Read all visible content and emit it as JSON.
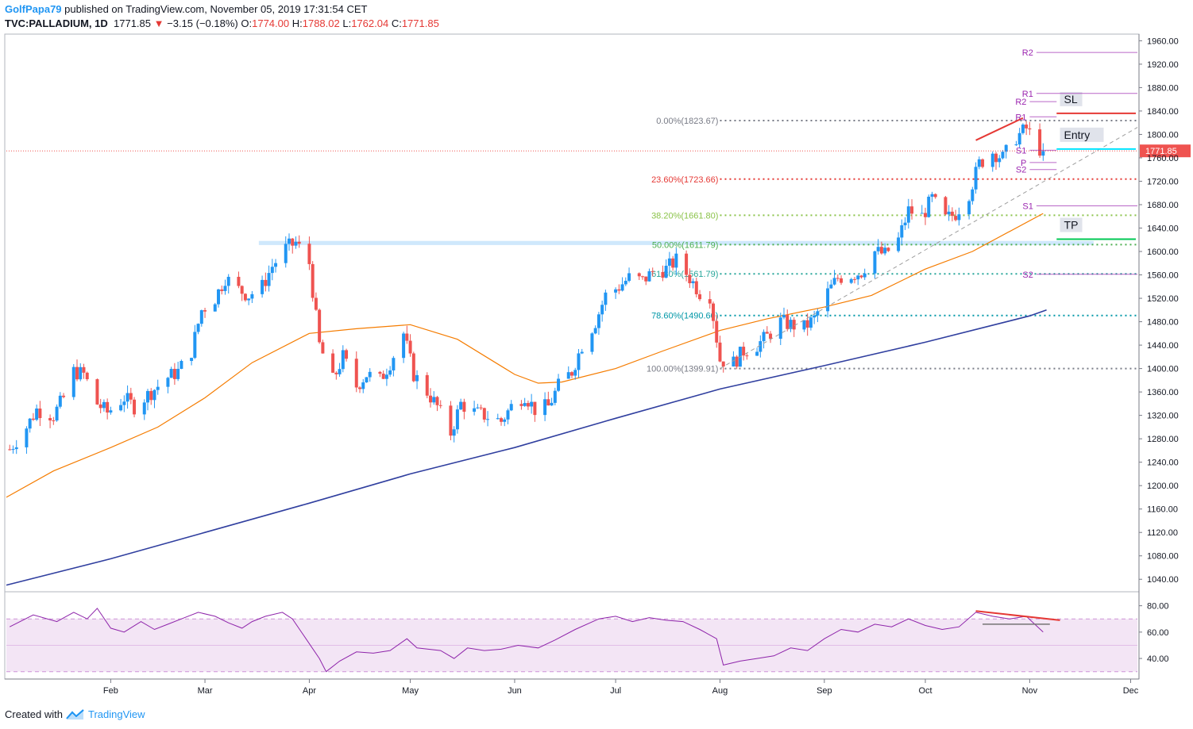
{
  "header": {
    "user": "GolfPapa79",
    "published": "published on TradingView.com, November 05, 2019 17:31:54 CET",
    "symbol": "TVC:PALLADIUM, 1D",
    "last": "1771.85",
    "change": "−3.15 (−0.18%)",
    "o_label": "O:",
    "o": "1774.00",
    "h_label": "H:",
    "h": "1788.02",
    "l_label": "L:",
    "l": "1762.04",
    "c_label": "C:",
    "c": "1771.85"
  },
  "footer": {
    "created": "Created with",
    "brand": "TradingView"
  },
  "colors": {
    "up": "#2196f3",
    "down": "#ef5350",
    "ma50": "#f57c00",
    "ma200": "#303f9f",
    "rsi": "#8e24aa",
    "rsi_band": "#f3e5f5",
    "pivot": "#9c27b0"
  },
  "chart_data": {
    "type": "candlestick",
    "symbol": "TVC:PALLADIUM",
    "interval": "1D",
    "ylim": [
      1020,
      1970
    ],
    "y_ticks": [
      "1960.00",
      "1920.00",
      "1880.00",
      "1840.00",
      "1800.00",
      "1760.00",
      "1720.00",
      "1680.00",
      "1640.00",
      "1600.00",
      "1560.00",
      "1520.00",
      "1480.00",
      "1440.00",
      "1400.00",
      "1360.00",
      "1320.00",
      "1280.00",
      "1240.00",
      "1200.00",
      "1160.00",
      "1120.00",
      "1080.00",
      "1040.00"
    ],
    "x_months": [
      {
        "label": "Feb",
        "date": "2019-02-01"
      },
      {
        "label": "Mar",
        "date": "2019-03-01"
      },
      {
        "label": "Apr",
        "date": "2019-04-01"
      },
      {
        "label": "May",
        "date": "2019-05-01"
      },
      {
        "label": "Jun",
        "date": "2019-06-01"
      },
      {
        "label": "Jul",
        "date": "2019-07-01"
      },
      {
        "label": "Aug",
        "date": "2019-08-01"
      },
      {
        "label": "Sep",
        "date": "2019-09-01"
      },
      {
        "label": "Oct",
        "date": "2019-10-01"
      },
      {
        "label": "Nov",
        "date": "2019-11-01"
      },
      {
        "label": "Dec",
        "date": "2019-12-01"
      }
    ],
    "x_start": "2019-01-01",
    "x_end": "2019-12-03",
    "last_price_label": "1771.85",
    "last_price": 1771.85,
    "close_path": [
      [
        "2019-01-02",
        1262
      ],
      [
        "2019-01-07",
        1300
      ],
      [
        "2019-01-10",
        1330
      ],
      [
        "2019-01-15",
        1320
      ],
      [
        "2019-01-18",
        1350
      ],
      [
        "2019-01-21",
        1395
      ],
      [
        "2019-01-24",
        1390
      ],
      [
        "2019-01-28",
        1340
      ],
      [
        "2019-01-31",
        1325
      ],
      [
        "2019-02-05",
        1350
      ],
      [
        "2019-02-08",
        1335
      ],
      [
        "2019-02-13",
        1360
      ],
      [
        "2019-02-18",
        1385
      ],
      [
        "2019-02-21",
        1395
      ],
      [
        "2019-02-25",
        1430
      ],
      [
        "2019-02-28",
        1500
      ],
      [
        "2019-03-04",
        1520
      ],
      [
        "2019-03-07",
        1555
      ],
      [
        "2019-03-11",
        1535
      ],
      [
        "2019-03-14",
        1525
      ],
      [
        "2019-03-18",
        1540
      ],
      [
        "2019-03-21",
        1575
      ],
      [
        "2019-03-25",
        1605
      ],
      [
        "2019-03-28",
        1615
      ],
      [
        "2019-04-01",
        1580
      ],
      [
        "2019-04-04",
        1440
      ],
      [
        "2019-04-08",
        1380
      ],
      [
        "2019-04-11",
        1420
      ],
      [
        "2019-04-15",
        1370
      ],
      [
        "2019-04-18",
        1390
      ],
      [
        "2019-04-22",
        1380
      ],
      [
        "2019-04-25",
        1410
      ],
      [
        "2019-04-29",
        1460
      ],
      [
        "2019-05-02",
        1390
      ],
      [
        "2019-05-06",
        1360
      ],
      [
        "2019-05-09",
        1335
      ],
      [
        "2019-05-13",
        1290
      ],
      [
        "2019-05-16",
        1340
      ],
      [
        "2019-05-20",
        1325
      ],
      [
        "2019-05-23",
        1320
      ],
      [
        "2019-05-28",
        1310
      ],
      [
        "2019-05-31",
        1335
      ],
      [
        "2019-06-04",
        1355
      ],
      [
        "2019-06-07",
        1330
      ],
      [
        "2019-06-11",
        1335
      ],
      [
        "2019-06-14",
        1370
      ],
      [
        "2019-06-18",
        1395
      ],
      [
        "2019-06-21",
        1440
      ],
      [
        "2019-06-25",
        1480
      ],
      [
        "2019-06-28",
        1525
      ],
      [
        "2019-07-02",
        1540
      ],
      [
        "2019-07-05",
        1555
      ],
      [
        "2019-07-09",
        1550
      ],
      [
        "2019-07-12",
        1565
      ],
      [
        "2019-07-16",
        1570
      ],
      [
        "2019-07-19",
        1585
      ],
      [
        "2019-07-23",
        1555
      ],
      [
        "2019-07-26",
        1530
      ],
      [
        "2019-07-29",
        1525
      ],
      [
        "2019-08-01",
        1415
      ],
      [
        "2019-08-05",
        1410
      ],
      [
        "2019-08-08",
        1430
      ],
      [
        "2019-08-12",
        1440
      ],
      [
        "2019-08-15",
        1455
      ],
      [
        "2019-08-19",
        1480
      ],
      [
        "2019-08-22",
        1475
      ],
      [
        "2019-08-26",
        1470
      ],
      [
        "2019-08-29",
        1485
      ],
      [
        "2019-09-02",
        1530
      ],
      [
        "2019-09-05",
        1555
      ],
      [
        "2019-09-09",
        1560
      ],
      [
        "2019-09-12",
        1565
      ],
      [
        "2019-09-16",
        1600
      ],
      [
        "2019-09-19",
        1595
      ],
      [
        "2019-09-23",
        1620
      ],
      [
        "2019-09-26",
        1670
      ],
      [
        "2019-09-30",
        1660
      ],
      [
        "2019-10-03",
        1690
      ],
      [
        "2019-10-07",
        1655
      ],
      [
        "2019-10-10",
        1665
      ],
      [
        "2019-10-14",
        1700
      ],
      [
        "2019-10-17",
        1750
      ],
      [
        "2019-10-21",
        1770
      ],
      [
        "2019-10-24",
        1760
      ],
      [
        "2019-10-28",
        1795
      ],
      [
        "2019-10-31",
        1810
      ],
      [
        "2019-11-04",
        1775
      ],
      [
        "2019-11-05",
        1771.85
      ]
    ],
    "ma50": [
      [
        "2019-01-01",
        1180
      ],
      [
        "2019-01-15",
        1225
      ],
      [
        "2019-02-01",
        1265
      ],
      [
        "2019-02-15",
        1300
      ],
      [
        "2019-03-01",
        1350
      ],
      [
        "2019-03-15",
        1410
      ],
      [
        "2019-04-01",
        1460
      ],
      [
        "2019-04-15",
        1468
      ],
      [
        "2019-05-01",
        1475
      ],
      [
        "2019-05-15",
        1450
      ],
      [
        "2019-06-01",
        1390
      ],
      [
        "2019-06-08",
        1375
      ],
      [
        "2019-06-15",
        1377
      ],
      [
        "2019-07-01",
        1400
      ],
      [
        "2019-07-15",
        1430
      ],
      [
        "2019-08-01",
        1465
      ],
      [
        "2019-08-15",
        1485
      ],
      [
        "2019-09-01",
        1505
      ],
      [
        "2019-09-15",
        1525
      ],
      [
        "2019-10-01",
        1570
      ],
      [
        "2019-10-15",
        1600
      ],
      [
        "2019-11-05",
        1665
      ]
    ],
    "ma200": [
      [
        "2019-01-01",
        1030
      ],
      [
        "2019-02-01",
        1075
      ],
      [
        "2019-03-01",
        1120
      ],
      [
        "2019-04-01",
        1170
      ],
      [
        "2019-05-01",
        1220
      ],
      [
        "2019-06-01",
        1265
      ],
      [
        "2019-07-01",
        1315
      ],
      [
        "2019-08-01",
        1365
      ],
      [
        "2019-09-01",
        1405
      ],
      [
        "2019-10-01",
        1445
      ],
      [
        "2019-11-01",
        1490
      ],
      [
        "2019-11-06",
        1500
      ]
    ],
    "fib_levels": [
      {
        "label": "0.00%(1823.67)",
        "price": 1823.67,
        "color": "#787b86"
      },
      {
        "label": "23.60%(1723.66)",
        "price": 1723.66,
        "color": "#e53935"
      },
      {
        "label": "38.20%(1661.80)",
        "price": 1661.8,
        "color": "#8bc34a"
      },
      {
        "label": "50.00%(1611.79)",
        "price": 1611.79,
        "color": "#4caf50"
      },
      {
        "label": "61.80%(1561.79)",
        "price": 1561.79,
        "color": "#26a69a"
      },
      {
        "label": "78.60%(1490.60)",
        "price": 1490.6,
        "color": "#0097a7"
      },
      {
        "label": "100.00%(1399.91)",
        "price": 1399.91,
        "color": "#787b86"
      }
    ],
    "pivots": [
      {
        "label": "R2",
        "price": 1940
      },
      {
        "label": "R1",
        "price": 1870
      },
      {
        "label": "R2",
        "price": 1856
      },
      {
        "label": "R1",
        "price": 1830
      },
      {
        "label": "S1",
        "price": 1773
      },
      {
        "label": "P",
        "price": 1752
      },
      {
        "label": "S2",
        "price": 1740
      },
      {
        "label": "S1",
        "price": 1678
      },
      {
        "label": "S2",
        "price": 1561
      }
    ],
    "trade_labels": [
      {
        "label": "SL",
        "price": 1836,
        "color": "#e53935"
      },
      {
        "label": "Entry",
        "price": 1775,
        "color": "#00e5ff"
      },
      {
        "label": "TP",
        "price": 1621,
        "color": "#00c853"
      }
    ],
    "resistance_zone": [
      1611,
      1618
    ],
    "rsi": {
      "ylim": [
        25,
        90
      ],
      "ticks": [
        "80.00",
        "60.00",
        "40.00"
      ],
      "bands": [
        70,
        30
      ],
      "path": [
        [
          "2019-01-02",
          64
        ],
        [
          "2019-01-09",
          73
        ],
        [
          "2019-01-16",
          68
        ],
        [
          "2019-01-21",
          75
        ],
        [
          "2019-01-25",
          70
        ],
        [
          "2019-01-28",
          78
        ],
        [
          "2019-02-01",
          63
        ],
        [
          "2019-02-05",
          60
        ],
        [
          "2019-02-10",
          68
        ],
        [
          "2019-02-14",
          62
        ],
        [
          "2019-02-18",
          66
        ],
        [
          "2019-02-22",
          70
        ],
        [
          "2019-02-27",
          75
        ],
        [
          "2019-03-04",
          72
        ],
        [
          "2019-03-08",
          67
        ],
        [
          "2019-03-12",
          63
        ],
        [
          "2019-03-15",
          68
        ],
        [
          "2019-03-19",
          72
        ],
        [
          "2019-03-24",
          75
        ],
        [
          "2019-03-27",
          70
        ],
        [
          "2019-03-31",
          55
        ],
        [
          "2019-04-04",
          40
        ],
        [
          "2019-04-06",
          30
        ],
        [
          "2019-04-10",
          38
        ],
        [
          "2019-04-15",
          45
        ],
        [
          "2019-04-20",
          44
        ],
        [
          "2019-04-25",
          46
        ],
        [
          "2019-04-30",
          55
        ],
        [
          "2019-05-03",
          48
        ],
        [
          "2019-05-10",
          46
        ],
        [
          "2019-05-14",
          40
        ],
        [
          "2019-05-18",
          48
        ],
        [
          "2019-05-23",
          46
        ],
        [
          "2019-05-28",
          47
        ],
        [
          "2019-06-02",
          50
        ],
        [
          "2019-06-08",
          48
        ],
        [
          "2019-06-13",
          54
        ],
        [
          "2019-06-19",
          62
        ],
        [
          "2019-06-26",
          70
        ],
        [
          "2019-07-01",
          72
        ],
        [
          "2019-07-06",
          68
        ],
        [
          "2019-07-11",
          71
        ],
        [
          "2019-07-16",
          69
        ],
        [
          "2019-07-21",
          68
        ],
        [
          "2019-07-26",
          62
        ],
        [
          "2019-07-31",
          55
        ],
        [
          "2019-08-02",
          35
        ],
        [
          "2019-08-07",
          38
        ],
        [
          "2019-08-12",
          40
        ],
        [
          "2019-08-17",
          42
        ],
        [
          "2019-08-22",
          48
        ],
        [
          "2019-08-27",
          46
        ],
        [
          "2019-09-01",
          55
        ],
        [
          "2019-09-06",
          62
        ],
        [
          "2019-09-11",
          60
        ],
        [
          "2019-09-16",
          66
        ],
        [
          "2019-09-21",
          64
        ],
        [
          "2019-09-26",
          70
        ],
        [
          "2019-10-01",
          65
        ],
        [
          "2019-10-06",
          62
        ],
        [
          "2019-10-11",
          64
        ],
        [
          "2019-10-16",
          75
        ],
        [
          "2019-10-21",
          72
        ],
        [
          "2019-10-26",
          70
        ],
        [
          "2019-10-31",
          72
        ],
        [
          "2019-11-05",
          60
        ]
      ]
    }
  }
}
